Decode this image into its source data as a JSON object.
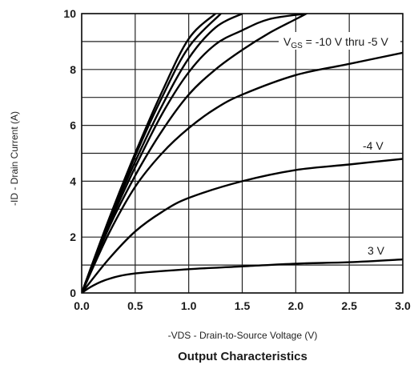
{
  "chart_data": {
    "type": "line",
    "title": "Output Characteristics",
    "xlabel": "-VDS - Drain-to-Source Voltage (V)",
    "ylabel": "-ID - Drain Current (A)",
    "xlim": [
      0,
      3.0
    ],
    "ylim": [
      0,
      10
    ],
    "x_ticks": [
      0.0,
      0.5,
      1.0,
      1.5,
      2.0,
      2.5,
      3.0
    ],
    "x_tick_labels": [
      "0.0",
      "0.5",
      "1.0",
      "1.5",
      "2.0",
      "2.5",
      "3.0"
    ],
    "y_ticks": [
      0,
      2,
      4,
      6,
      8,
      10
    ],
    "y_tick_labels": [
      "0",
      "2",
      "4",
      "6",
      "8",
      "10"
    ],
    "grid": true,
    "annotations": {
      "vgs_range": {
        "prefix": "V",
        "subscript": "GS",
        "suffix": " = -10 V thru -5 V"
      },
      "curve_4v": "-4 V",
      "curve_3v": "3 V"
    },
    "series": [
      {
        "x": [
          0,
          0.25,
          0.5,
          0.75,
          1.0,
          1.25
        ],
        "y": [
          0,
          2.6,
          5.0,
          7.2,
          9.1,
          10.0
        ]
      },
      {
        "x": [
          0,
          0.25,
          0.5,
          0.75,
          1.0,
          1.3
        ],
        "y": [
          0,
          2.5,
          4.9,
          7.0,
          8.8,
          10.0
        ]
      },
      {
        "x": [
          0,
          0.25,
          0.5,
          0.75,
          1.0,
          1.25,
          1.5
        ],
        "y": [
          0,
          2.5,
          4.7,
          6.7,
          8.4,
          9.5,
          10.0
        ]
      },
      {
        "x": [
          0,
          0.25,
          0.5,
          0.75,
          1.0,
          1.25,
          1.5,
          1.75,
          2.1
        ],
        "y": [
          0,
          2.4,
          4.5,
          6.4,
          7.9,
          8.9,
          9.4,
          9.8,
          10.0
        ]
      },
      {
        "x": [
          0,
          0.25,
          0.5,
          0.75,
          1.0,
          1.25,
          1.5,
          1.75,
          2.0,
          2.1
        ],
        "y": [
          0,
          2.3,
          4.2,
          5.8,
          7.1,
          8.0,
          8.7,
          9.3,
          9.8,
          10.0
        ]
      },
      {
        "x": [
          0,
          0.25,
          0.5,
          0.75,
          1.0,
          1.25,
          1.5,
          2.0,
          2.5,
          3.0
        ],
        "y": [
          0,
          2.1,
          3.8,
          5.0,
          5.9,
          6.6,
          7.1,
          7.8,
          8.2,
          8.6
        ]
      },
      {
        "x": [
          0,
          0.25,
          0.5,
          0.75,
          1.0,
          1.5,
          2.0,
          2.5,
          3.0
        ],
        "y": [
          0,
          1.2,
          2.2,
          2.9,
          3.4,
          4.0,
          4.4,
          4.6,
          4.8
        ]
      },
      {
        "x": [
          0,
          0.1,
          0.25,
          0.5,
          1.0,
          1.5,
          2.0,
          2.5,
          3.0
        ],
        "y": [
          0,
          0.25,
          0.5,
          0.7,
          0.85,
          0.95,
          1.05,
          1.1,
          1.2
        ]
      }
    ]
  }
}
